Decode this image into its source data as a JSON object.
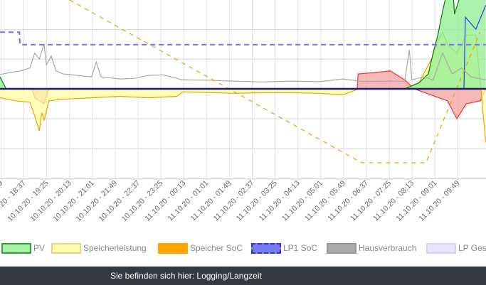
{
  "chart_data": {
    "type": "line",
    "title": "",
    "xlabel": "",
    "ylabel": "",
    "grid": true,
    "legend_position": "bottom",
    "x_ticks": [
      "10.10.20 - 18:37",
      "10.10.20 - 19:25",
      "10.10.20 - 20:13",
      "10.10.20 - 21:01",
      "10.10.20 - 21:49",
      "10.10.20 - 22:37",
      "10.10.20 - 23:25",
      "11.10.20 - 00:13",
      "11.10.20 - 01:01",
      "11.10.20 - 01:49",
      "11.10.20 - 02:37",
      "11.10.20 - 03:25",
      "11.10.20 - 04:13",
      "11.10.20 - 05:01",
      "11.10.20 - 05:49",
      "11.10.20 - 06:37",
      "11.10.20 - 07:25",
      "11.10.20 - 08:13",
      "11.10.20 - 09:01",
      "11.10.20 - 09:49"
    ],
    "series": [
      {
        "name": "PV",
        "axis": "power",
        "fill": true,
        "color": "#008000",
        "fill_color": "#90ee90",
        "points": [
          [
            "17:47",
            400
          ],
          [
            "18:00",
            0
          ],
          [
            "08:00",
            0
          ],
          [
            "08:30",
            200
          ],
          [
            "08:50",
            500
          ],
          [
            "09:00",
            1200
          ],
          [
            "09:10",
            1800
          ],
          [
            "09:20",
            2600
          ],
          [
            "09:30",
            3300
          ],
          [
            "09:40",
            3800
          ],
          [
            "09:45",
            2500
          ],
          [
            "09:55",
            3000
          ],
          [
            "10:00",
            5200
          ],
          [
            "10:51",
            5200
          ]
        ]
      },
      {
        "name": "Speicherleistung",
        "axis": "power",
        "fill": true,
        "color": "#f0a000",
        "fill_color": "#ffffa0",
        "points": [
          [
            "17:47",
            -300
          ],
          [
            "18:20",
            -400
          ],
          [
            "18:50",
            -450
          ],
          [
            "19:00",
            -900
          ],
          [
            "19:10",
            -1400
          ],
          [
            "19:15",
            -800
          ],
          [
            "19:20",
            -1050
          ],
          [
            "19:30",
            -400
          ],
          [
            "20:00",
            -350
          ],
          [
            "21:00",
            -300
          ],
          [
            "22:00",
            -250
          ],
          [
            "23:00",
            -300
          ],
          [
            "00:00",
            -250
          ],
          [
            "00:13",
            -100
          ],
          [
            "01:00",
            -120
          ],
          [
            "02:00",
            -150
          ],
          [
            "03:00",
            -130
          ],
          [
            "04:00",
            -130
          ],
          [
            "05:00",
            -150
          ],
          [
            "05:49",
            -200
          ],
          [
            "06:15",
            -50
          ],
          [
            "06:22",
            0
          ],
          [
            "08:00",
            0
          ],
          [
            "08:30",
            200
          ],
          [
            "09:00",
            1100
          ],
          [
            "09:10",
            1600
          ],
          [
            "09:20",
            1900
          ],
          [
            "09:30",
            1500
          ],
          [
            "09:50",
            1200
          ],
          [
            "10:10",
            1800
          ],
          [
            "10:30",
            1800
          ],
          [
            "10:51",
            -1800
          ]
        ]
      },
      {
        "name": "Speicher SoC",
        "axis": "soc",
        "dashed": true,
        "color": "#f0a000",
        "points": [
          [
            "20:14",
            100
          ],
          [
            "06:09",
            12
          ],
          [
            "06:30",
            9
          ],
          [
            "08:45",
            9
          ],
          [
            "09:02",
            20
          ],
          [
            "10:39",
            82
          ]
        ]
      },
      {
        "name": "LP1 SoC",
        "axis": "soc",
        "dashed": true,
        "color": "#7070ee",
        "points": [
          [
            "17:47",
            82
          ],
          [
            "18:28",
            82
          ],
          [
            "18:29",
            75
          ],
          [
            "10:51",
            75
          ]
        ]
      },
      {
        "name": "Hausverbrauch",
        "axis": "power",
        "color": "#a9a9a9",
        "points": [
          [
            "17:47",
            480
          ],
          [
            "18:10",
            550
          ],
          [
            "18:30",
            600
          ],
          [
            "18:50",
            700
          ],
          [
            "19:00",
            1200
          ],
          [
            "19:10",
            1000
          ],
          [
            "19:20",
            1500
          ],
          [
            "19:25",
            800
          ],
          [
            "19:35",
            1100
          ],
          [
            "19:45",
            600
          ],
          [
            "20:00",
            500
          ],
          [
            "20:30",
            450
          ],
          [
            "21:00",
            400
          ],
          [
            "21:10",
            900
          ],
          [
            "21:20",
            400
          ],
          [
            "22:00",
            330
          ],
          [
            "22:30",
            350
          ],
          [
            "23:00",
            450
          ],
          [
            "23:30",
            470
          ],
          [
            "00:13",
            300
          ],
          [
            "01:00",
            290
          ],
          [
            "02:00",
            260
          ],
          [
            "03:00",
            230
          ],
          [
            "04:00",
            260
          ],
          [
            "05:00",
            240
          ],
          [
            "05:49",
            330
          ],
          [
            "06:30",
            250
          ],
          [
            "07:00",
            250
          ],
          [
            "07:30",
            260
          ],
          [
            "08:00",
            250
          ],
          [
            "08:10",
            1300
          ],
          [
            "08:15",
            300
          ],
          [
            "08:40",
            400
          ],
          [
            "09:00",
            300
          ],
          [
            "09:20",
            1200
          ],
          [
            "09:40",
            500
          ],
          [
            "10:00",
            700
          ],
          [
            "10:20",
            400
          ],
          [
            "10:51",
            300
          ]
        ]
      },
      {
        "name": "LP Ges",
        "axis": "power",
        "color": "#dcdcf8",
        "points": []
      },
      {
        "axis": "power",
        "fill": true,
        "color": "#ee3333",
        "fill_color": "#f4a0a0",
        "points": [
          [
            "17:47",
            0
          ],
          [
            "18:55",
            0
          ],
          [
            "19:00",
            -300
          ],
          [
            "19:20",
            -500
          ],
          [
            "19:30",
            0
          ],
          [
            "06:20",
            0
          ],
          [
            "06:22",
            500
          ],
          [
            "07:00",
            550
          ],
          [
            "07:30",
            600
          ],
          [
            "08:00",
            300
          ],
          [
            "08:20",
            0
          ],
          [
            "09:30",
            -400
          ],
          [
            "09:50",
            -1000
          ],
          [
            "10:10",
            -500
          ],
          [
            "10:40",
            -400
          ],
          [
            "10:51",
            0
          ]
        ]
      },
      {
        "axis": "power",
        "color": "#2040e0",
        "points": [
          [
            "10:05",
            0
          ],
          [
            "10:08",
            2400
          ],
          [
            "10:30",
            2000
          ],
          [
            "10:51",
            2800
          ]
        ]
      }
    ]
  },
  "legend": [
    {
      "label": "PV",
      "bg": "#a6f0a6",
      "border": "#3c9c3c",
      "style": "solid"
    },
    {
      "label": "Speicherleistung",
      "bg": "#ffffb0",
      "border": "#f0d080",
      "style": "solid"
    },
    {
      "label": "Speicher SoC",
      "bg": "#ffa500",
      "border": "#ffa500",
      "style": "dashed"
    },
    {
      "label": "LP1 SoC",
      "bg": "#7b7bf0",
      "border": "#3030d0",
      "style": "dashed"
    },
    {
      "label": "Hausverbrauch",
      "bg": "#aaaaaa",
      "border": "#999999",
      "style": "solid"
    },
    {
      "label": "LP Ges",
      "bg": "#e4e4fa",
      "border": "#d4d4f4",
      "style": "solid"
    }
  ],
  "footer": {
    "text": "Sie befinden sich hier: Logging/Langzeit"
  },
  "colors": {
    "zero_line": "#1a1a6e",
    "grid": "#d3d3d3",
    "footer_bg": "#343a40"
  }
}
